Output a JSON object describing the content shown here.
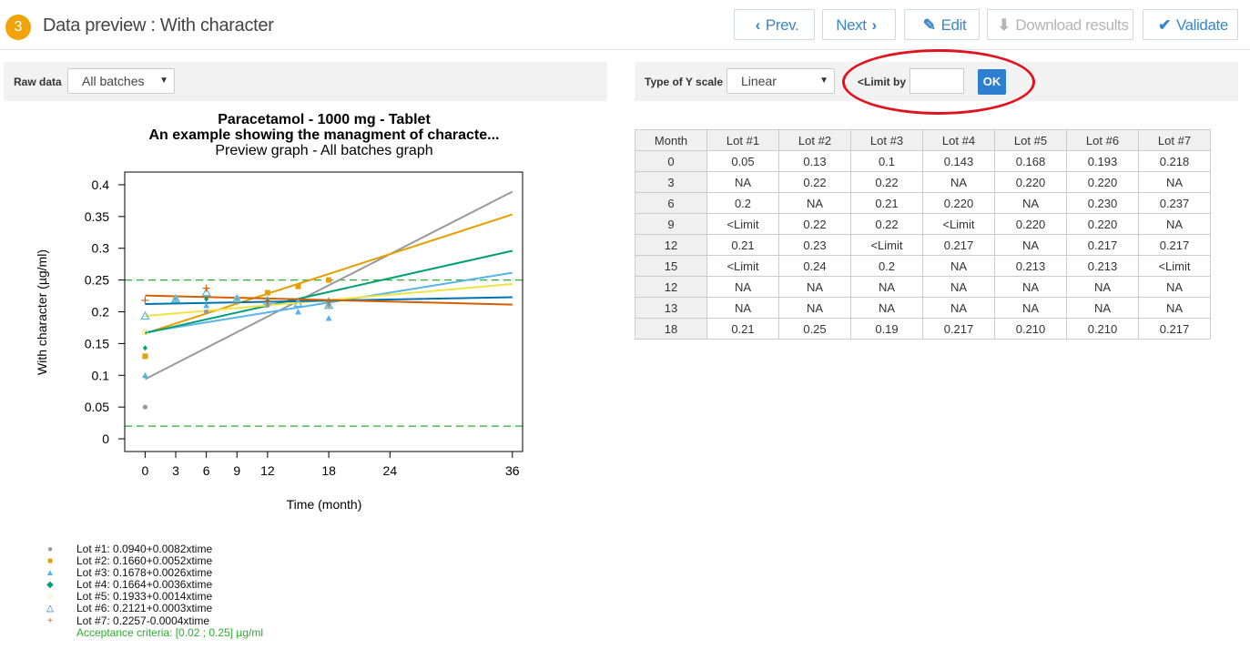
{
  "header": {
    "step_number": "3",
    "title": "Data preview : With character",
    "prev_label": "Prev.",
    "next_label": "Next",
    "edit_label": "Edit",
    "download_label": "Download results",
    "validate_label": "Validate"
  },
  "left_toolbar": {
    "raw_data_label": "Raw data",
    "batch_select_value": "All batches"
  },
  "right_toolbar": {
    "y_scale_label": "Type of Y scale",
    "y_scale_value": "Linear",
    "limit_label": "<Limit by",
    "limit_value": "",
    "ok_label": "OK"
  },
  "colors": {
    "accent": "#3a87c8",
    "badge": "#f0a30a",
    "ok_button": "#2c7fd1",
    "annotation_ellipse": "#e0141e",
    "acceptance": "#2ab02a"
  },
  "table": {
    "headers": [
      "Month",
      "Lot #1",
      "Lot #2",
      "Lot #3",
      "Lot #4",
      "Lot #5",
      "Lot #6",
      "Lot #7"
    ],
    "rows": [
      [
        "0",
        "0.05",
        "0.13",
        "0.1",
        "0.143",
        "0.168",
        "0.193",
        "0.218"
      ],
      [
        "3",
        "NA",
        "0.22",
        "0.22",
        "NA",
        "0.220",
        "0.220",
        "NA"
      ],
      [
        "6",
        "0.2",
        "NA",
        "0.21",
        "0.220",
        "NA",
        "0.230",
        "0.237"
      ],
      [
        "9",
        "<Limit",
        "0.22",
        "0.22",
        "<Limit",
        "0.220",
        "0.220",
        "NA"
      ],
      [
        "12",
        "0.21",
        "0.23",
        "<Limit",
        "0.217",
        "NA",
        "0.217",
        "0.217"
      ],
      [
        "15",
        "<Limit",
        "0.24",
        "0.2",
        "NA",
        "0.213",
        "0.213",
        "<Limit"
      ],
      [
        "12",
        "NA",
        "NA",
        "NA",
        "NA",
        "NA",
        "NA",
        "NA"
      ],
      [
        "13",
        "NA",
        "NA",
        "NA",
        "NA",
        "NA",
        "NA",
        "NA"
      ],
      [
        "18",
        "0.21",
        "0.25",
        "0.19",
        "0.217",
        "0.210",
        "0.210",
        "0.217"
      ]
    ]
  },
  "legend": {
    "entries": [
      {
        "symbol": "●",
        "color": "#999999",
        "text": "Lot #1: 0.0940+0.0082xtime"
      },
      {
        "symbol": "■",
        "color": "#e69f00",
        "text": "Lot #2: 0.1660+0.0052xtime"
      },
      {
        "symbol": "▲",
        "color": "#56b4e9",
        "text": "Lot #3: 0.1678+0.0026xtime"
      },
      {
        "symbol": "◆",
        "color": "#009e73",
        "text": "Lot #4: 0.1664+0.0036xtime"
      },
      {
        "symbol": "○",
        "color": "#f0e442",
        "text": "Lot #5: 0.1933+0.0014xtime"
      },
      {
        "symbol": "△",
        "color": "#0072b2",
        "text": "Lot #6: 0.2121+0.0003xtime"
      },
      {
        "symbol": "+",
        "color": "#d55e00",
        "text": "Lot #7: 0.2257-0.0004xtime"
      }
    ],
    "criteria_text": "Acceptance criteria: [0.02 ; 0.25]  µg/ml"
  },
  "chart_data": {
    "type": "scatter",
    "title": "Paracetamol - 1000 mg - Tablet",
    "subtitle": "An example showing the managment of characte...",
    "subtitle2": "Preview graph - All batches graph",
    "xlabel": "Time (month)",
    "ylabel": "With character (µg/ml)",
    "xlim": [
      -2,
      37
    ],
    "ylim": [
      -0.02,
      0.42
    ],
    "x_ticks": [
      0,
      3,
      6,
      9,
      12,
      18,
      24,
      36
    ],
    "y_ticks": [
      0,
      0.05,
      0.1,
      0.15,
      0.2,
      0.25,
      0.3,
      0.35,
      0.4
    ],
    "y_tick_labels": [
      "0",
      "0.05",
      "0.1",
      "0.15",
      "0.2",
      "0.25",
      "0.3",
      "0.35",
      "0.4"
    ],
    "acceptance": {
      "lower": 0.02,
      "upper": 0.25,
      "color": "#2ab02a"
    },
    "series": [
      {
        "name": "Lot #1",
        "color": "#999999",
        "line_color": "#999999",
        "marker": "circle",
        "intercept": 0.094,
        "slope": 0.0082,
        "points": [
          [
            0,
            0.05
          ],
          [
            6,
            0.2
          ],
          [
            12,
            0.21
          ],
          [
            18,
            0.21
          ]
        ]
      },
      {
        "name": "Lot #2",
        "color": "#e69f00",
        "line_color": "#e69f00",
        "marker": "square",
        "intercept": 0.166,
        "slope": 0.0052,
        "points": [
          [
            0,
            0.13
          ],
          [
            3,
            0.22
          ],
          [
            9,
            0.22
          ],
          [
            12,
            0.23
          ],
          [
            15,
            0.24
          ],
          [
            18,
            0.25
          ]
        ]
      },
      {
        "name": "Lot #3",
        "color": "#56b4e9",
        "line_color": "#56b4e9",
        "marker": "triangle",
        "intercept": 0.1678,
        "slope": 0.0026,
        "points": [
          [
            0,
            0.1
          ],
          [
            3,
            0.22
          ],
          [
            6,
            0.21
          ],
          [
            9,
            0.22
          ],
          [
            15,
            0.2
          ],
          [
            18,
            0.19
          ]
        ]
      },
      {
        "name": "Lot #4",
        "color": "#009e73",
        "line_color": "#009e73",
        "marker": "diamond",
        "intercept": 0.1664,
        "slope": 0.0036,
        "points": [
          [
            0,
            0.143
          ],
          [
            6,
            0.22
          ],
          [
            12,
            0.217
          ],
          [
            18,
            0.217
          ]
        ]
      },
      {
        "name": "Lot #5",
        "color": "#f0e442",
        "line_color": "#f0e442",
        "marker": "open-circle",
        "intercept": 0.1933,
        "slope": 0.0014,
        "points": [
          [
            0,
            0.168
          ],
          [
            3,
            0.22
          ],
          [
            9,
            0.22
          ],
          [
            15,
            0.213
          ],
          [
            18,
            0.21
          ]
        ]
      },
      {
        "name": "Lot #6",
        "color": "#56b4e9",
        "line_color": "#0072b2",
        "marker": "open-triangle",
        "intercept": 0.2121,
        "slope": 0.0003,
        "points": [
          [
            0,
            0.193
          ],
          [
            3,
            0.22
          ],
          [
            6,
            0.23
          ],
          [
            9,
            0.22
          ],
          [
            12,
            0.217
          ],
          [
            15,
            0.213
          ],
          [
            18,
            0.21
          ]
        ]
      },
      {
        "name": "Lot #7",
        "color": "#d55e00",
        "line_color": "#d55e00",
        "marker": "plus",
        "intercept": 0.2257,
        "slope": -0.0004,
        "points": [
          [
            0,
            0.218
          ],
          [
            6,
            0.237
          ],
          [
            12,
            0.217
          ],
          [
            18,
            0.217
          ]
        ]
      }
    ]
  }
}
